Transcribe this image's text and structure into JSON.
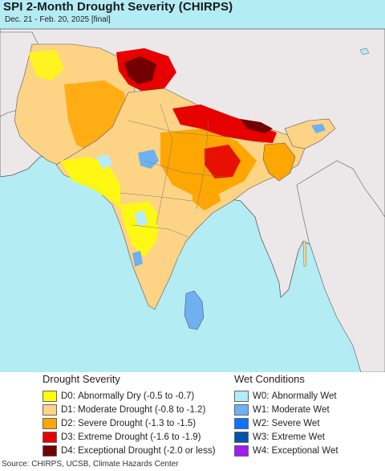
{
  "header": {
    "title": "SPI 2-Month Drought Severity (CHIRPS)",
    "subtitle": "Dec. 21 - Feb. 20, 2025 [final]"
  },
  "map": {
    "ocean_color": "#b4ecf4",
    "land_nodata_color": "#ece8ea",
    "border_color": "#5a5a5a"
  },
  "legend": {
    "drought": {
      "heading": "Drought Severity",
      "items": [
        {
          "code": "D0:",
          "label": "Abnormally Dry (-0.5 to -0.7)",
          "color": "#fffe00"
        },
        {
          "code": "D1:",
          "label": "Moderate Drought (-0.8 to -1.2)",
          "color": "#fdd386"
        },
        {
          "code": "D2:",
          "label": "Severe Drought (-1.3 to -1.5)",
          "color": "#fea601"
        },
        {
          "code": "D3:",
          "label": "Extreme Drought (-1.6 to -1.9)",
          "color": "#e60000"
        },
        {
          "code": "D4:",
          "label": "Exceptional Drought (-2.0 or less)",
          "color": "#720000"
        }
      ]
    },
    "wet": {
      "heading": "Wet Conditions",
      "items": [
        {
          "code": "W0:",
          "label": "Abnormally Wet",
          "color": "#b3ecfc"
        },
        {
          "code": "W1:",
          "label": "Moderate Wet",
          "color": "#6eb1f1"
        },
        {
          "code": "W2:",
          "label": "Severe Wet",
          "color": "#0e73ff"
        },
        {
          "code": "W3:",
          "label": "Extreme Wet",
          "color": "#0453ab"
        },
        {
          "code": "W4:",
          "label": "Exceptional Wet",
          "color": "#a01cef"
        }
      ]
    }
  },
  "footer": {
    "source": "Source: CHIRPS, UCSB, Climate Hazards Center"
  }
}
